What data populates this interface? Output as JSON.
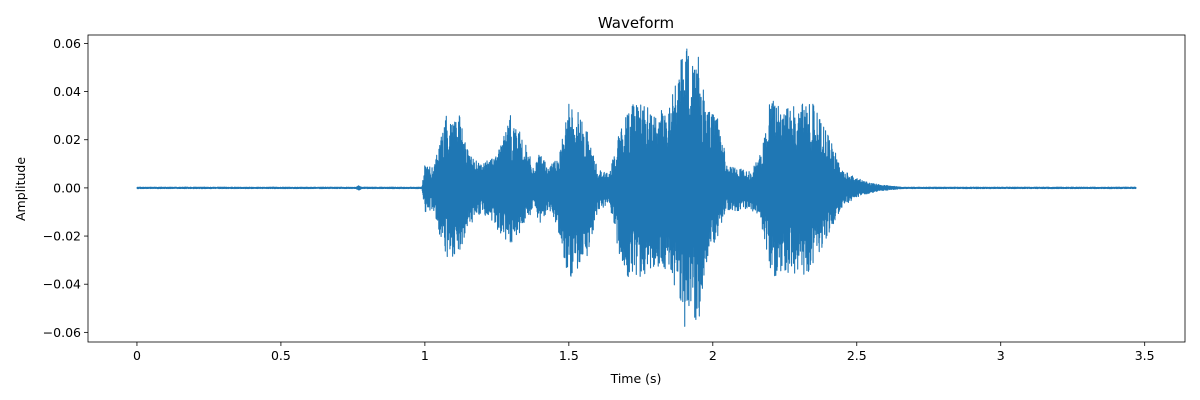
{
  "chart_data": {
    "type": "line",
    "title": "Waveform",
    "xlabel": "Time (s)",
    "ylabel": "Amplitude",
    "xlim": [
      -0.17,
      3.64
    ],
    "ylim": [
      -0.064,
      0.0635
    ],
    "x_ticks": [
      0,
      0.5,
      1,
      1.5,
      2,
      2.5,
      3,
      3.5
    ],
    "x_tick_labels": [
      "0",
      "0.5",
      "1",
      "1.5",
      "2",
      "2.5",
      "3",
      "3.5"
    ],
    "y_ticks": [
      -0.06,
      -0.04,
      -0.02,
      0.0,
      0.02,
      0.04,
      0.06
    ],
    "y_tick_labels": [
      "−0.06",
      "−0.04",
      "−0.02",
      "0.00",
      "0.02",
      "0.04",
      "0.06"
    ],
    "grid": false,
    "legend": "none",
    "line_color": "#1f77b4",
    "duration_s": 3.47,
    "series": [
      {
        "envelope": {
          "t": [
            0,
            0.76,
            0.77,
            0.78,
            0.99,
            1.0,
            1.03,
            1.05,
            1.08,
            1.12,
            1.15,
            1.2,
            1.25,
            1.3,
            1.35,
            1.38,
            1.4,
            1.43,
            1.47,
            1.5,
            1.53,
            1.56,
            1.6,
            1.64,
            1.68,
            1.72,
            1.75,
            1.8,
            1.85,
            1.9,
            1.95,
            1.98,
            2.02,
            2.05,
            2.1,
            2.13,
            2.17,
            2.2,
            2.25,
            2.3,
            2.35,
            2.4,
            2.45,
            2.5,
            2.55,
            2.6,
            2.66,
            2.7,
            3.47
          ],
          "max": [
            0.0003,
            0.0003,
            0.001,
            0.0003,
            0.0003,
            0.01,
            0.008,
            0.02,
            0.032,
            0.03,
            0.015,
            0.01,
            0.015,
            0.031,
            0.018,
            0.008,
            0.015,
            0.008,
            0.015,
            0.036,
            0.033,
            0.025,
            0.008,
            0.006,
            0.025,
            0.038,
            0.037,
            0.03,
            0.035,
            0.058,
            0.057,
            0.032,
            0.03,
            0.009,
            0.008,
            0.007,
            0.015,
            0.037,
            0.034,
            0.035,
            0.035,
            0.022,
            0.008,
            0.004,
            0.002,
            0.001,
            0.0003,
            0.0003,
            0.0003
          ],
          "min": [
            -0.0003,
            -0.0003,
            -0.001,
            -0.0003,
            -0.0003,
            -0.01,
            -0.009,
            -0.02,
            -0.031,
            -0.029,
            -0.016,
            -0.01,
            -0.018,
            -0.025,
            -0.016,
            -0.008,
            -0.016,
            -0.008,
            -0.02,
            -0.04,
            -0.035,
            -0.03,
            -0.01,
            -0.006,
            -0.032,
            -0.04,
            -0.038,
            -0.032,
            -0.035,
            -0.059,
            -0.057,
            -0.03,
            -0.02,
            -0.009,
            -0.01,
            -0.008,
            -0.016,
            -0.038,
            -0.035,
            -0.038,
            -0.033,
            -0.02,
            -0.008,
            -0.004,
            -0.002,
            -0.001,
            -0.0003,
            -0.0003,
            -0.0003
          ]
        }
      }
    ]
  }
}
